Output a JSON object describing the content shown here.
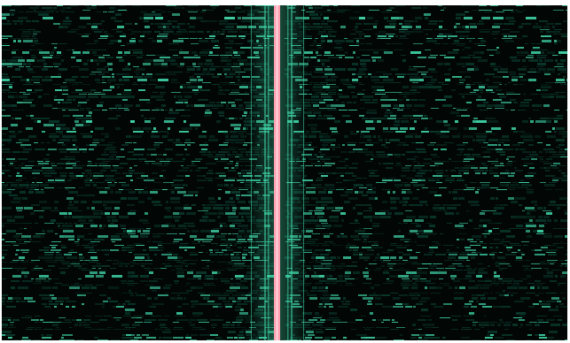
{
  "display": {
    "background_color": "#020604",
    "signal_color": "#3fd3a6",
    "dim_signal_color": "#0f5a45",
    "carrier_color": "#ff9fb0",
    "carrier_core_color": "#ffd6de",
    "frame_color": "#ffffff"
  }
}
